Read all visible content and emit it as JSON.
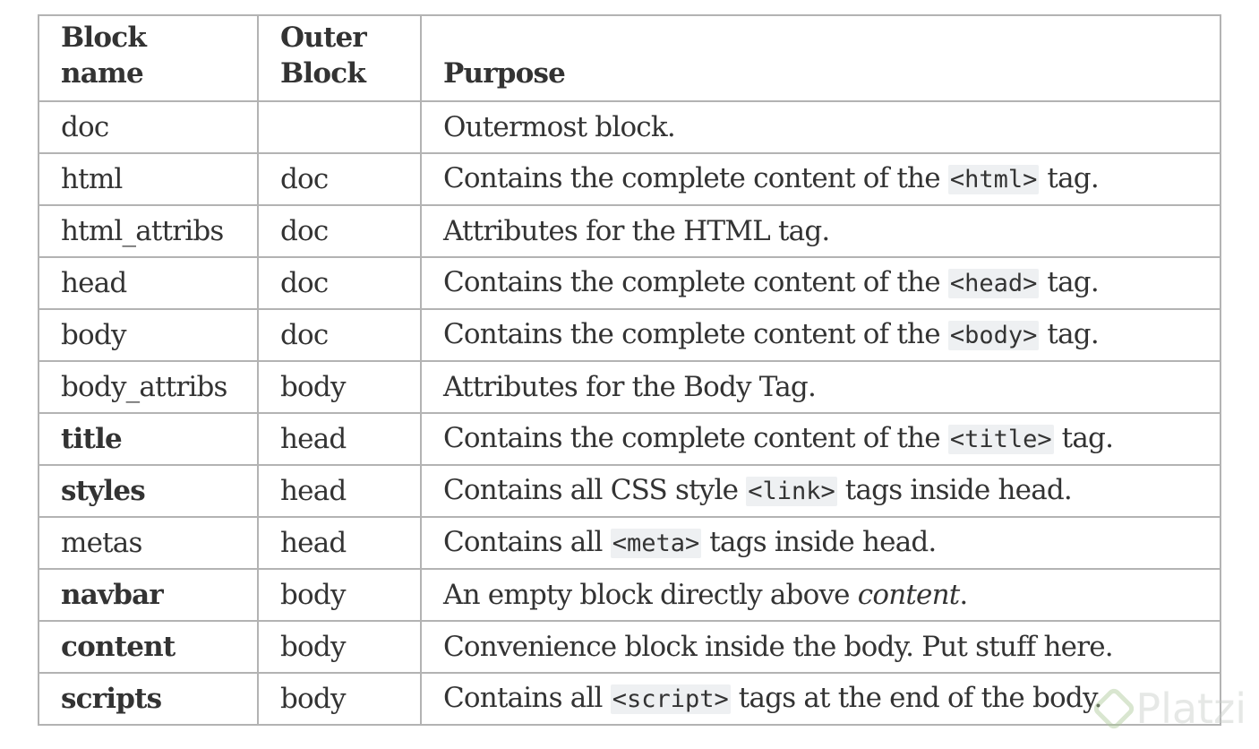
{
  "table": {
    "headers": [
      "Block name",
      "Outer Block",
      "Purpose"
    ],
    "rows": [
      {
        "name": "doc",
        "name_bold": false,
        "outer": "",
        "purpose": [
          {
            "t": "Outermost block."
          }
        ]
      },
      {
        "name": "html",
        "name_bold": false,
        "outer": "doc",
        "purpose": [
          {
            "t": "Contains the complete content of the "
          },
          {
            "t": "<html>",
            "code": true
          },
          {
            "t": " tag."
          }
        ]
      },
      {
        "name": "html_attribs",
        "name_bold": false,
        "outer": "doc",
        "purpose": [
          {
            "t": "Attributes for the HTML tag."
          }
        ]
      },
      {
        "name": "head",
        "name_bold": false,
        "outer": "doc",
        "purpose": [
          {
            "t": "Contains the complete content of the "
          },
          {
            "t": "<head>",
            "code": true
          },
          {
            "t": " tag."
          }
        ]
      },
      {
        "name": "body",
        "name_bold": false,
        "outer": "doc",
        "purpose": [
          {
            "t": "Contains the complete content of the "
          },
          {
            "t": "<body>",
            "code": true
          },
          {
            "t": " tag."
          }
        ]
      },
      {
        "name": "body_attribs",
        "name_bold": false,
        "outer": "body",
        "purpose": [
          {
            "t": "Attributes for the Body Tag."
          }
        ]
      },
      {
        "name": "title",
        "name_bold": true,
        "outer": "head",
        "purpose": [
          {
            "t": "Contains the complete content of the "
          },
          {
            "t": "<title>",
            "code": true
          },
          {
            "t": " tag."
          }
        ]
      },
      {
        "name": "styles",
        "name_bold": true,
        "outer": "head",
        "purpose": [
          {
            "t": "Contains all CSS style "
          },
          {
            "t": "<link>",
            "code": true
          },
          {
            "t": " tags inside head."
          }
        ]
      },
      {
        "name": "metas",
        "name_bold": false,
        "outer": "head",
        "purpose": [
          {
            "t": "Contains all "
          },
          {
            "t": "<meta>",
            "code": true
          },
          {
            "t": " tags inside head."
          }
        ]
      },
      {
        "name": "navbar",
        "name_bold": true,
        "outer": "body",
        "purpose": [
          {
            "t": "An empty block directly above "
          },
          {
            "t": "content",
            "italic": true
          },
          {
            "t": "."
          }
        ]
      },
      {
        "name": "content",
        "name_bold": true,
        "outer": "body",
        "purpose": [
          {
            "t": "Convenience block inside the body. Put stuff here."
          }
        ]
      },
      {
        "name": "scripts",
        "name_bold": true,
        "outer": "body",
        "purpose": [
          {
            "t": "Contains all "
          },
          {
            "t": "<script>",
            "code": true
          },
          {
            "t": " tags at the end of the body."
          }
        ]
      }
    ]
  },
  "watermark": {
    "text": "Platzi",
    "icon": "platzi-logo-icon"
  },
  "colors": {
    "border": "#b3b3b3",
    "text": "#333333",
    "code_bg": "#eef0f2"
  }
}
